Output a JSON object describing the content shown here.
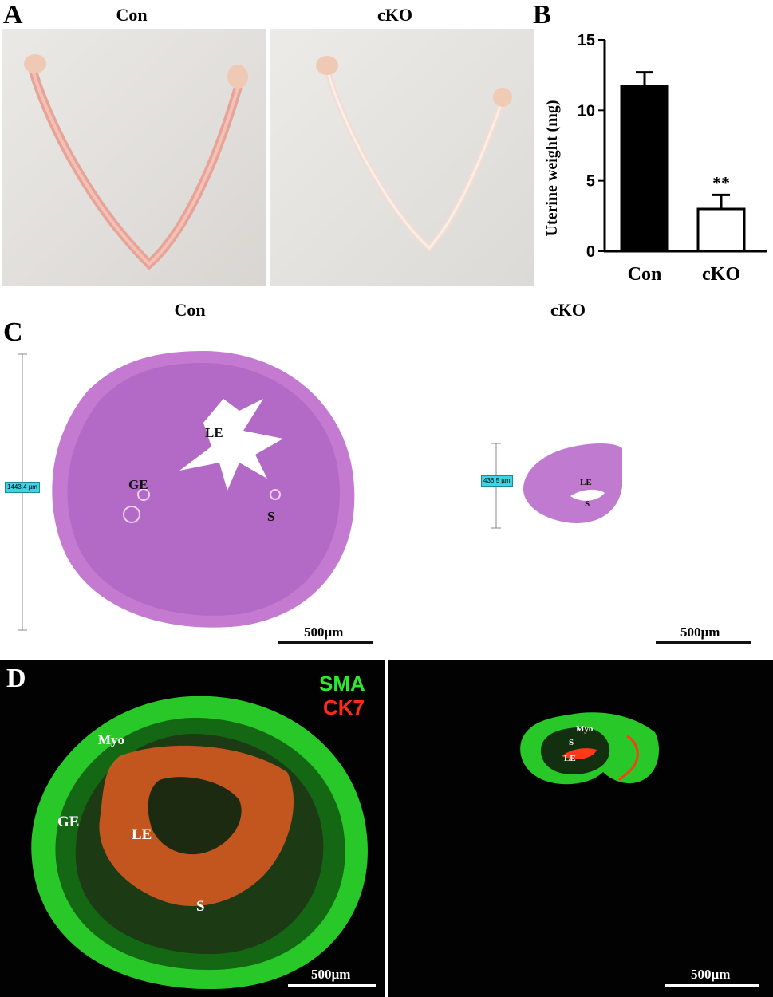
{
  "panel_a": {
    "letter": "A",
    "left_title": "Con",
    "right_title": "cKO"
  },
  "panel_b": {
    "letter": "B",
    "significance": "**",
    "chart_data": {
      "type": "bar",
      "categories": [
        "Con",
        "cKO"
      ],
      "values": [
        11.7,
        3.0
      ],
      "errors": [
        1.0,
        1.0
      ],
      "fill_colors": [
        "#000000",
        "#ffffff"
      ],
      "title": "",
      "xlabel": "",
      "ylabel": "Uterine weight (mg)",
      "ylim": [
        0,
        15
      ],
      "yticks": [
        0,
        5,
        10,
        15
      ],
      "grid": false
    }
  },
  "panel_c": {
    "letter": "C",
    "left_title": "Con",
    "right_title": "cKO",
    "left_measure": "1443.4 µm",
    "right_measure": "436.5 µm",
    "left_labels": {
      "le": "LE",
      "ge": "GE",
      "s": "S"
    },
    "right_labels": {
      "le": "LE",
      "s": "S"
    },
    "scale_left": "500µm",
    "scale_right": "500µm"
  },
  "panel_d": {
    "letter": "D",
    "legend_sma": "SMA",
    "legend_ck7": "CK7",
    "legend_sma_color": "#2ee82e",
    "legend_ck7_color": "#ff2a1a",
    "left_labels": {
      "myo": "Myo",
      "ge": "GE",
      "le": "LE",
      "s": "S"
    },
    "right_labels": {
      "myo": "Myo",
      "s": "S",
      "le": "LE"
    },
    "scale_left": "500µm",
    "scale_right": "500µm"
  }
}
